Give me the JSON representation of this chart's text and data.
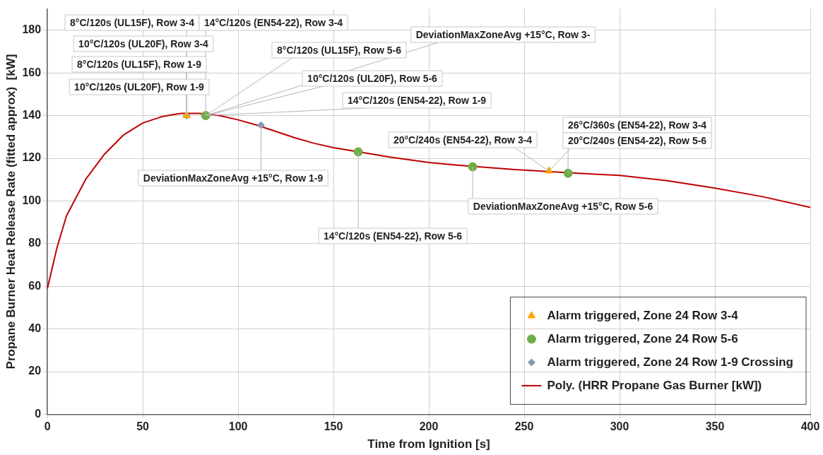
{
  "chart_data": {
    "type": "scatter",
    "xlabel": "Time from Ignition [s]",
    "ylabel": "Propane Burner Heat Release Rate (fitted approx)  [kW]",
    "xlim": [
      0,
      400
    ],
    "xticks": [
      0,
      50,
      100,
      150,
      200,
      250,
      300,
      350,
      400
    ],
    "ylim": [
      0,
      190
    ],
    "yticks": [
      0,
      20,
      40,
      60,
      80,
      100,
      120,
      140,
      160,
      180
    ],
    "grid": true,
    "legend": "bottom right",
    "series": [
      {
        "name": "Poly. (HRR Propane Gas Burner [kW])",
        "type": "line",
        "marker": "none",
        "line_style": "solid",
        "color": "#c00000",
        "x": [
          0,
          5,
          10,
          20,
          30,
          40,
          50,
          60,
          70,
          80,
          90,
          100,
          110,
          120,
          130,
          140,
          150,
          160,
          180,
          200,
          215,
          245,
          285,
          300,
          325,
          350,
          375,
          400
        ],
        "values": [
          59,
          78,
          93,
          110,
          122,
          131,
          136.5,
          139.5,
          141,
          141,
          140,
          138,
          135.5,
          132.5,
          129.5,
          127,
          125,
          123.5,
          120.5,
          118,
          116.8,
          114.7,
          112.6,
          112,
          109.5,
          106,
          102,
          97
        ]
      },
      {
        "name": "Alarm triggered, Zone 24 Row 3-4",
        "type": "scatter",
        "marker": "triangle",
        "color": "#ffa500",
        "x": [
          73,
          263
        ],
        "values": [
          140,
          114
        ]
      },
      {
        "name": "Alarm triggered, Zone 24 Row 5-6",
        "type": "scatter",
        "marker": "circle",
        "color": "#70ad47",
        "x": [
          83,
          163,
          223,
          273
        ],
        "values": [
          140,
          123,
          116,
          113
        ]
      },
      {
        "name": "Alarm triggered, Zone 24 Row 1-9 Crossing",
        "type": "scatter",
        "marker": "diamond",
        "color": "#8497b0",
        "x": [
          73,
          112
        ],
        "values": [
          140,
          135.5
        ]
      }
    ],
    "annotations": [
      {
        "text": "8°C/120s (UL15F), Row 3-4",
        "x": 73,
        "y": 140
      },
      {
        "text": "14°C/120s (EN54-22), Row 3-4",
        "x": 83,
        "y": 140
      },
      {
        "text": "10°C/120s (UL20F), Row 3-4",
        "x": 73,
        "y": 140
      },
      {
        "text": "8°C/120s (UL15F), Row 1-9",
        "x": 73,
        "y": 140
      },
      {
        "text": "10°C/120s (UL20F), Row 1-9",
        "x": 73,
        "y": 140
      },
      {
        "text": "8°C/120s (UL15F), Row 5-6",
        "x": 83,
        "y": 140
      },
      {
        "text": "DeviationMaxZoneAvg +15°C, Row 3-",
        "x": 83,
        "y": 140
      },
      {
        "text": "10°C/120s (UL20F), Row 5-6",
        "x": 83,
        "y": 140
      },
      {
        "text": "14°C/120s (EN54-22), Row 1-9",
        "x": 83,
        "y": 140
      },
      {
        "text": "DeviationMaxZoneAvg +15°C, Row 1-9",
        "x": 112,
        "y": 135.5
      },
      {
        "text": "14°C/120s (EN54-22), Row 5-6",
        "x": 163,
        "y": 123
      },
      {
        "text": "20°C/240s (EN54-22), Row 3-4",
        "x": 263,
        "y": 114
      },
      {
        "text": "26°C/360s (EN54-22), Row 3-4",
        "x": 263,
        "y": 114
      },
      {
        "text": "20°C/240s (EN54-22), Row 5-6",
        "x": 273,
        "y": 113
      },
      {
        "text": "DeviationMaxZoneAvg +15°C, Row 5-6",
        "x": 223,
        "y": 116
      }
    ]
  }
}
